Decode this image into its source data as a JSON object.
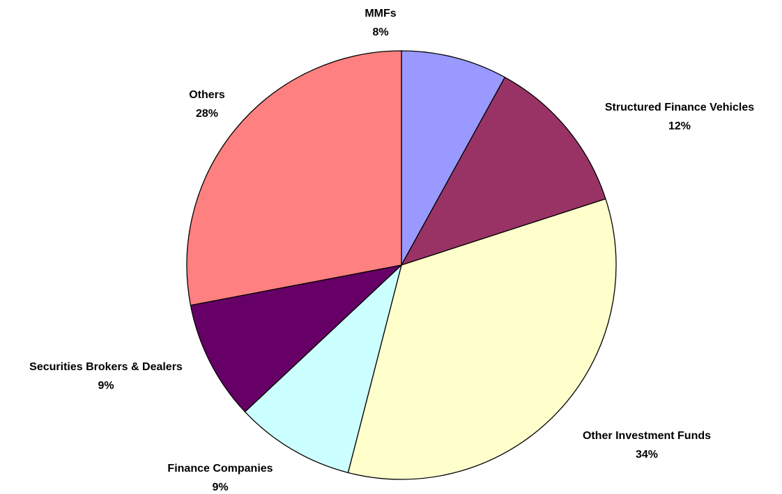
{
  "chart_data": {
    "type": "pie",
    "categories": [
      "MMFs",
      "Structured Finance Vehicles",
      "Other Investment Funds",
      "Finance Companies",
      "Securities Brokers & Dealers",
      "Others"
    ],
    "values": [
      8,
      12,
      34,
      9,
      9,
      28
    ],
    "value_labels": [
      "8%",
      "12%",
      "34%",
      "9%",
      "9%",
      "28%"
    ],
    "colors": [
      "#9999ff",
      "#993366",
      "#ffffcc",
      "#ccffff",
      "#660066",
      "#ff8080"
    ]
  }
}
